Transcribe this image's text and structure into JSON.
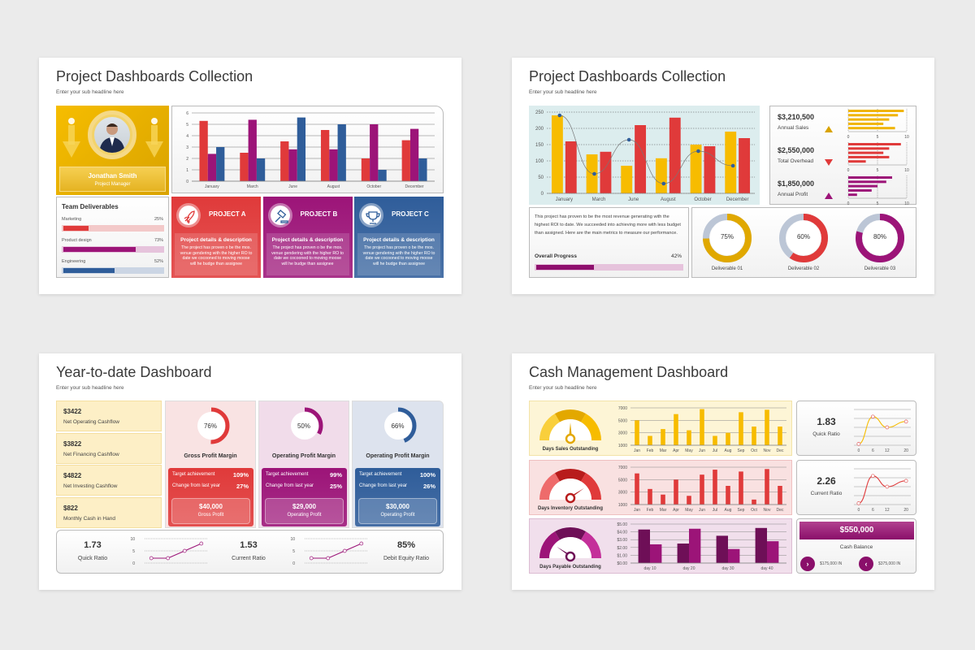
{
  "colors": {
    "background": "#ebebeb",
    "red": "#e03a3a",
    "purple": "#9c1478",
    "blue": "#2f5d9a",
    "yellow": "#f7bc00",
    "teal_bg": "#dcedee"
  },
  "slides": [
    {
      "title": "Project Dashboards Collection",
      "subtitle": "Enter your sub headline here",
      "profile": {
        "name": "Jonathan Smith",
        "role": "Project Manager",
        "icon": "person-photo"
      },
      "deliverables": {
        "title": "Team Deliverables",
        "items": [
          {
            "label": "Marketing",
            "value_label": "25%",
            "value": 25
          },
          {
            "label": "Product design",
            "value_label": "73%",
            "value": 73
          },
          {
            "label": "Engineering",
            "value_label": "52%",
            "value": 52
          }
        ]
      },
      "projects": [
        {
          "title": "PROJECT A",
          "icon": "rocket-icon",
          "heading": "Project details & description",
          "body": "The project has proven o be the mos. venue gendering with the higher RO to date we cocooned to moving moose will he budge than assignee"
        },
        {
          "title": "PROJECT B",
          "icon": "gavel-icon",
          "heading": "Project details & description",
          "body": "The project has proven o be the mos. venue gendering with the higher RO to date we cocooned to moving moose will he budge than assignee"
        },
        {
          "title": "PROJECT C",
          "icon": "trophy-icon",
          "heading": "Project details & description",
          "body": "The project has proven o be the mos. venue gendering with the higher RO to date we cocooned to moving moose will he budge than assignee"
        }
      ]
    },
    {
      "title": "Project Dashboards Collection",
      "subtitle": "Enter your sub headline here",
      "kpis": [
        {
          "value": "$3,210,500",
          "label": "Annual Sales",
          "trend": "up"
        },
        {
          "value": "$2,550,000",
          "label": "Total Overhead",
          "trend": "down"
        },
        {
          "value": "$1,850,000",
          "label": "Annual Profit",
          "trend": "up"
        }
      ],
      "description": "This project has proven to be the most revenue generating with the highest ROI to date. We succeeded into achieving more with less budget than assigned. Here are the main metrics to measure our performance.",
      "progress": {
        "label": "Overall Progress",
        "value_label": "42%",
        "value": 42
      },
      "donuts": [
        {
          "label": "Deliverable 01",
          "value_label": "75%",
          "value": 75
        },
        {
          "label": "Deliverable 02",
          "value_label": "60%",
          "value": 60
        },
        {
          "label": "Deliverable 03",
          "value_label": "80%",
          "value": 80
        }
      ]
    },
    {
      "title": "Year-to-date Dashboard",
      "subtitle": "Enter your sub headline here",
      "cashflows": [
        {
          "value": "$3422",
          "label": "Net Operating Cashflow"
        },
        {
          "value": "$3822",
          "label": "Net Financing Cashflow"
        },
        {
          "value": "$4822",
          "label": "Net Investing Cashflow"
        },
        {
          "value": "$822",
          "label": "Monthly Cash in Hand"
        }
      ],
      "margins": [
        {
          "percent_label": "76%",
          "percent": 76,
          "title": "Gross Profit Margin",
          "rows": [
            {
              "label": "Target achievement",
              "value": "109%"
            },
            {
              "label": "Change from last year",
              "value": "27%"
            }
          ],
          "amount": "$40,000",
          "amount_label": "Gross Profit"
        },
        {
          "percent_label": "50%",
          "percent": 50,
          "title": "Operating Profit Margin",
          "rows": [
            {
              "label": "Target achievement",
              "value": "99%"
            },
            {
              "label": "Change from last year",
              "value": "25%"
            }
          ],
          "amount": "$29,000",
          "amount_label": "Operating Profit"
        },
        {
          "percent_label": "66%",
          "percent": 66,
          "title": "Operating Profit Margin",
          "rows": [
            {
              "label": "Target achievement",
              "value": "100%"
            },
            {
              "label": "Change from last year",
              "value": "26%"
            }
          ],
          "amount": "$30,000",
          "amount_label": "Operating Profit"
        }
      ],
      "ratios": [
        {
          "value": "1.73",
          "label": "Quick Ratio"
        },
        {
          "value": "1.53",
          "label": "Current Ratio"
        },
        {
          "value": "85%",
          "label": "Debit Equity Ratio"
        }
      ]
    },
    {
      "title": "Cash Management Dashboard",
      "subtitle": "Enter your sub headline here",
      "gauges": [
        {
          "label": "Days Sales Outstanding"
        },
        {
          "label": "Days Inventory Outstanding"
        },
        {
          "label": "Days Payable Outstanding"
        }
      ],
      "ratios": [
        {
          "value": "1.83",
          "label": "Quick Ratio"
        },
        {
          "value": "2.26",
          "label": "Current Ratio"
        }
      ],
      "cash": {
        "value": "$550,000",
        "label": "Cash Balance",
        "flows": [
          {
            "label": "$175,000 IN",
            "icon": "chevron-right-icon"
          },
          {
            "label": "$375,000 IN",
            "icon": "chevron-left-icon"
          }
        ]
      }
    }
  ],
  "chart_data": [
    {
      "id": "s1-bars",
      "type": "bar",
      "categories": [
        "January",
        "March",
        "June",
        "August",
        "October",
        "December"
      ],
      "ylim": [
        0,
        6
      ],
      "yticks": [
        0,
        1,
        2,
        3,
        4,
        5,
        6
      ],
      "grid": true,
      "series": [
        {
          "color": "#e03a3a",
          "values": [
            5.3,
            2.5,
            3.5,
            4.5,
            2,
            3.6
          ]
        },
        {
          "color": "#9c1478",
          "values": [
            2.4,
            5.4,
            2.8,
            2.8,
            5,
            4.6
          ]
        },
        {
          "color": "#2f5d9a",
          "values": [
            3,
            2,
            5.6,
            5,
            1,
            2
          ]
        }
      ]
    },
    {
      "id": "s2-combo",
      "type": "bar",
      "categories": [
        "January",
        "March",
        "June",
        "August",
        "October",
        "December"
      ],
      "ylim": [
        0,
        250
      ],
      "yticks": [
        0,
        50,
        100,
        150,
        200,
        250
      ],
      "grid": true,
      "series": [
        {
          "color": "#f7bc00",
          "values": [
            240,
            120,
            85,
            108,
            150,
            190
          ]
        },
        {
          "color": "#e03a3a",
          "values": [
            160,
            128,
            210,
            233,
            145,
            170
          ]
        }
      ],
      "line": {
        "color": "#2f5d9a",
        "values": [
          240,
          60,
          165,
          30,
          130,
          85
        ]
      }
    },
    {
      "id": "s2-sales",
      "type": "bar",
      "orientation": "horizontal",
      "xlim": [
        0,
        10
      ],
      "xticks": [
        0,
        5,
        10
      ],
      "color": "#f0b400",
      "values": [
        9.5,
        8.5,
        7,
        6,
        8
      ]
    },
    {
      "id": "s2-overhead",
      "type": "bar",
      "orientation": "horizontal",
      "xlim": [
        0,
        10
      ],
      "xticks": [
        0,
        5,
        10
      ],
      "color": "#e03a3a",
      "values": [
        9,
        7,
        6,
        7,
        3
      ]
    },
    {
      "id": "s2-profit",
      "type": "bar",
      "orientation": "horizontal",
      "xlim": [
        0,
        10
      ],
      "xticks": [
        0,
        5,
        10
      ],
      "color": "#9c1478",
      "values": [
        7.5,
        6.5,
        5,
        4,
        1.5
      ]
    },
    {
      "id": "s3-quick",
      "type": "line",
      "x": [
        1,
        2,
        3,
        4
      ],
      "values": [
        2,
        2,
        5,
        8
      ],
      "ylim": [
        0,
        10
      ],
      "yticks": [
        0,
        5,
        10
      ],
      "color": "#9c1478"
    },
    {
      "id": "s3-current",
      "type": "line",
      "x": [
        1,
        2,
        3,
        4
      ],
      "values": [
        2,
        2,
        5,
        8
      ],
      "ylim": [
        0,
        10
      ],
      "yticks": [
        0,
        5,
        10
      ],
      "color": "#9c1478"
    },
    {
      "id": "s4-dso",
      "type": "bar",
      "categories": [
        "Jan",
        "Feb",
        "Mar",
        "Apr",
        "May",
        "Jun",
        "Jul",
        "Aug",
        "Sep",
        "Oct",
        "Nov",
        "Dec"
      ],
      "ylim": [
        1000,
        7000
      ],
      "yticks": [
        1000,
        3000,
        5000,
        7000
      ],
      "grid": true,
      "series": [
        {
          "color": "#f7bc00",
          "values": [
            5000,
            2500,
            3600,
            6000,
            3400,
            6800,
            2500,
            3000,
            6300,
            4000,
            6700,
            4000
          ]
        }
      ]
    },
    {
      "id": "s4-dio",
      "type": "bar",
      "categories": [
        "Jan",
        "Feb",
        "Mar",
        "Apr",
        "May",
        "Jun",
        "Jul",
        "Aug",
        "Sep",
        "Oct",
        "Nov",
        "Dec"
      ],
      "ylim": [
        1000,
        7000
      ],
      "yticks": [
        1000,
        3000,
        5000,
        7000
      ],
      "grid": true,
      "series": [
        {
          "color": "#e03a3a",
          "values": [
            6000,
            3500,
            2600,
            5000,
            2400,
            5800,
            6600,
            4000,
            6300,
            1800,
            6700,
            4000
          ]
        }
      ]
    },
    {
      "id": "s4-dpo",
      "type": "bar",
      "categories": [
        "day 10",
        "day 20",
        "day 30",
        "day 40"
      ],
      "ylim": [
        0,
        5
      ],
      "yticks": [
        "$0.00",
        "$1.00",
        "$2.00",
        "$3.00",
        "$4.00",
        "$5.00"
      ],
      "ytick_values": [
        0,
        1,
        2,
        3,
        4,
        5
      ],
      "grid": true,
      "series": [
        {
          "color": "#6e0f57",
          "values": [
            4.3,
            2.5,
            3.5,
            4.5
          ]
        },
        {
          "color": "#9c1478",
          "values": [
            2.4,
            4.4,
            1.8,
            2.8
          ]
        }
      ]
    },
    {
      "id": "s4-quick",
      "type": "line",
      "smooth": true,
      "x": [
        0,
        6,
        12,
        20
      ],
      "xticks": [
        0,
        6,
        12,
        20
      ],
      "values": [
        0.3,
        6.4,
        4,
        5.3
      ],
      "ylim": [
        0,
        8
      ],
      "color": "#f7bc00"
    },
    {
      "id": "s4-current",
      "type": "line",
      "smooth": true,
      "x": [
        0,
        6,
        12,
        20
      ],
      "xticks": [
        0,
        6,
        12,
        20
      ],
      "values": [
        0.3,
        6.4,
        4,
        5.3
      ],
      "ylim": [
        0,
        8
      ],
      "color": "#e03a3a"
    }
  ]
}
